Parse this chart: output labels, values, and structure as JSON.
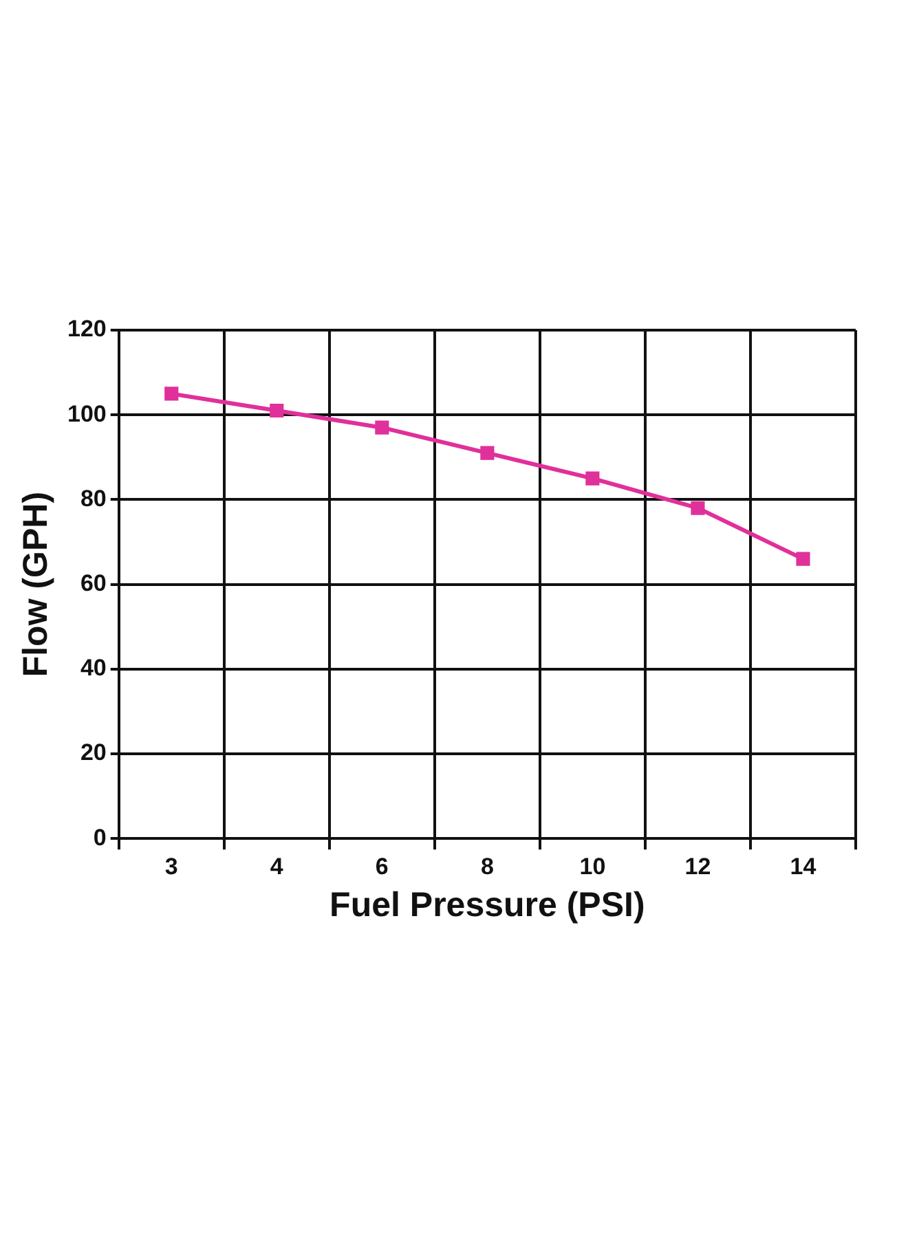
{
  "chart_data": {
    "type": "line",
    "xlabel": "Fuel Pressure (PSI)",
    "ylabel": "Flow (GPH)",
    "categories": [
      "3",
      "4",
      "6",
      "8",
      "10",
      "12",
      "14"
    ],
    "series": [
      {
        "color": "#e0309a",
        "values": [
          105,
          101,
          97,
          91,
          85,
          78,
          66
        ]
      }
    ],
    "ylim": [
      0,
      120
    ],
    "yticks": [
      0,
      20,
      40,
      60,
      80,
      100,
      120
    ],
    "grid": true,
    "legend": false,
    "marker": "square",
    "line_style": "solid"
  }
}
